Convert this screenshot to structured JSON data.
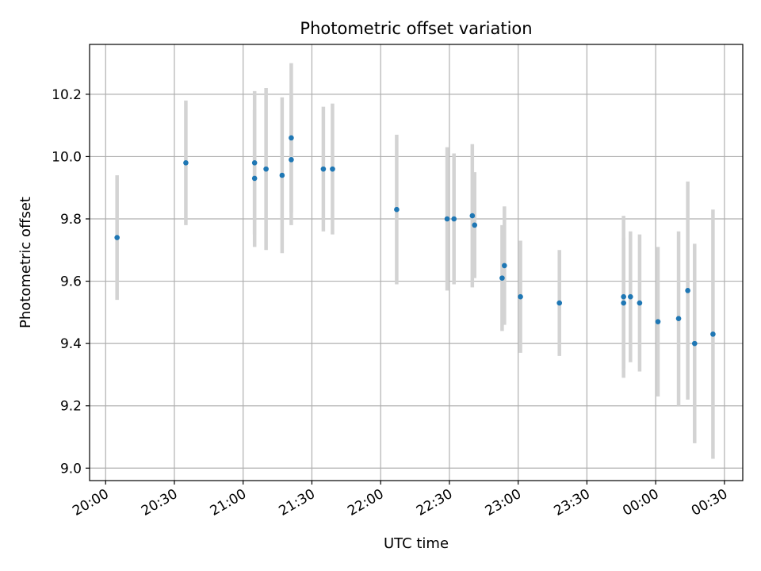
{
  "chart_data": {
    "type": "scatter",
    "title": "Photometric offset variation",
    "xlabel": "UTC time",
    "ylabel": "Photometric offset",
    "x_unit": "UTC time (HH:MM)",
    "xlim": [
      "19:53",
      "00:38"
    ],
    "ylim": [
      8.96,
      10.36
    ],
    "grid": true,
    "x_ticks": [
      "20:00",
      "20:30",
      "21:00",
      "21:30",
      "22:00",
      "22:30",
      "23:00",
      "23:30",
      "00:00",
      "00:30"
    ],
    "y_ticks": [
      "9.0",
      "9.2",
      "9.4",
      "9.6",
      "9.8",
      "10.0",
      "10.2"
    ],
    "series": [
      {
        "marker_color": "#1f77b4",
        "errorbar_color": "#d3d3d3",
        "points": [
          {
            "x": "20:05",
            "y": 9.74,
            "err": 0.2
          },
          {
            "x": "20:35",
            "y": 9.98,
            "err": 0.2
          },
          {
            "x": "21:05",
            "y": 9.98,
            "err": 0.23
          },
          {
            "x": "21:05",
            "y": 9.93,
            "err": 0.22
          },
          {
            "x": "21:10",
            "y": 9.96,
            "err": 0.26
          },
          {
            "x": "21:17",
            "y": 9.94,
            "err": 0.25
          },
          {
            "x": "21:21",
            "y": 10.06,
            "err": 0.24
          },
          {
            "x": "21:21",
            "y": 9.99,
            "err": 0.21
          },
          {
            "x": "21:35",
            "y": 9.96,
            "err": 0.2
          },
          {
            "x": "21:39",
            "y": 9.96,
            "err": 0.21
          },
          {
            "x": "22:07",
            "y": 9.83,
            "err": 0.24
          },
          {
            "x": "22:29",
            "y": 9.8,
            "err": 0.23
          },
          {
            "x": "22:32",
            "y": 9.8,
            "err": 0.21
          },
          {
            "x": "22:40",
            "y": 9.81,
            "err": 0.23
          },
          {
            "x": "22:41",
            "y": 9.78,
            "err": 0.17
          },
          {
            "x": "22:53",
            "y": 9.61,
            "err": 0.17
          },
          {
            "x": "22:54",
            "y": 9.65,
            "err": 0.19
          },
          {
            "x": "23:01",
            "y": 9.55,
            "err": 0.18
          },
          {
            "x": "23:18",
            "y": 9.53,
            "err": 0.17
          },
          {
            "x": "23:46",
            "y": 9.55,
            "err": 0.26
          },
          {
            "x": "23:46",
            "y": 9.53,
            "err": 0.21
          },
          {
            "x": "23:49",
            "y": 9.55,
            "err": 0.21
          },
          {
            "x": "23:53",
            "y": 9.53,
            "err": 0.22
          },
          {
            "x": "00:01",
            "y": 9.47,
            "err": 0.24
          },
          {
            "x": "00:10",
            "y": 9.48,
            "err": 0.28
          },
          {
            "x": "00:14",
            "y": 9.57,
            "err": 0.35
          },
          {
            "x": "00:17",
            "y": 9.4,
            "err": 0.32
          },
          {
            "x": "00:25",
            "y": 9.43,
            "err": 0.4
          }
        ]
      }
    ]
  }
}
